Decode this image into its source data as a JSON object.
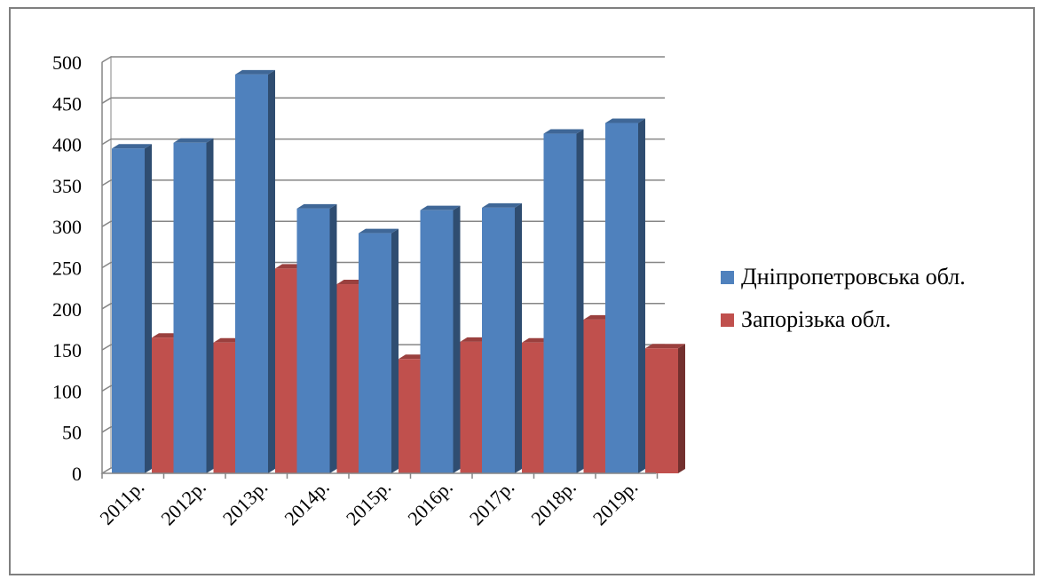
{
  "chart_data": {
    "type": "bar",
    "title": "",
    "xlabel": "",
    "ylabel": "",
    "categories": [
      "2011р.",
      "2012р.",
      "2013р.",
      "2014р.",
      "2015р.",
      "2016р.",
      "2017р.",
      "2018р.",
      "2019р."
    ],
    "series": [
      {
        "name": "Дніпропетровська обл.",
        "color": "#4F81BD",
        "values": [
          395,
          402,
          485,
          322,
          292,
          320,
          323,
          413,
          426
        ]
      },
      {
        "name": "Запорізька обл.",
        "color": "#C0504D",
        "values": [
          165,
          159,
          249,
          230,
          139,
          160,
          159,
          187,
          152
        ]
      }
    ],
    "ylim": [
      0,
      500
    ],
    "yticks": [
      0,
      50,
      100,
      150,
      200,
      250,
      300,
      350,
      400,
      450,
      500
    ],
    "grid": true,
    "style": "3d-clustered-column",
    "legend_position": "right"
  }
}
